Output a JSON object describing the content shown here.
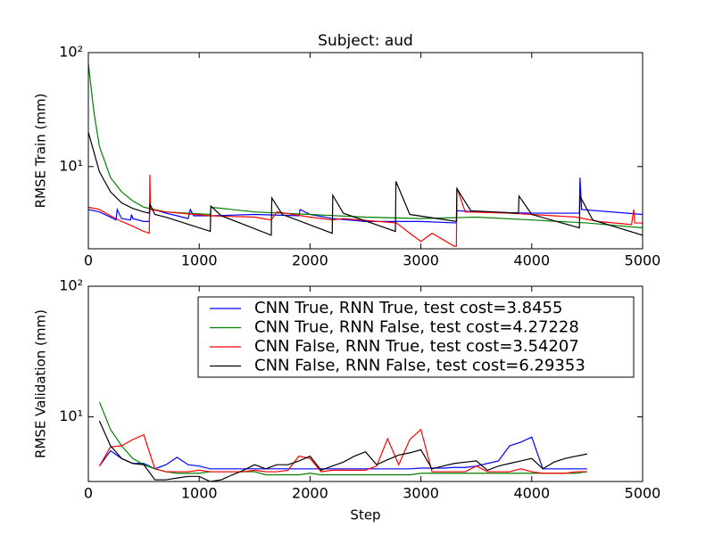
{
  "chart_data": [
    {
      "type": "line",
      "title": "Subject: aud",
      "y_label": "RMSE Train (mm)",
      "yscale": "log",
      "xlim": [
        0,
        5000
      ],
      "xticks": [
        0,
        1000,
        2000,
        3000,
        4000,
        5000
      ],
      "ylim": [
        1.9,
        100
      ],
      "yticks": [
        {
          "value": 10,
          "label": "10¹"
        },
        {
          "value": 100,
          "label": "10²"
        }
      ],
      "series": [
        {
          "color": "#0000ff",
          "x": [
            0,
            100,
            200,
            250,
            260,
            300,
            380,
            390,
            400,
            500,
            550,
            555,
            700,
            800,
            900,
            920,
            950,
            1100,
            1500,
            1900,
            1910,
            2000,
            2200,
            2500,
            3000,
            3320,
            3325,
            3500,
            4000,
            4430,
            4435,
            4450,
            5000
          ],
          "values": [
            4.2,
            4,
            3.6,
            3.4,
            4.2,
            3.5,
            3.4,
            3.8,
            3.5,
            3.3,
            3.3,
            4.3,
            3.9,
            3.7,
            3.5,
            4.2,
            3.7,
            3.7,
            3.8,
            3.7,
            4.2,
            3.8,
            3.5,
            3.3,
            3.3,
            3.2,
            4.1,
            4.0,
            3.9,
            3.9,
            8,
            4.2,
            3.8
          ]
        },
        {
          "color": "#008000",
          "x": [
            0,
            50,
            100,
            200,
            300,
            400,
            500,
            700,
            1100,
            1105,
            1500,
            2000,
            2500,
            3000,
            3500,
            4000,
            4500,
            5000
          ],
          "values": [
            80,
            30,
            15,
            8,
            6,
            5,
            4.4,
            4.0,
            3.8,
            4.4,
            4.0,
            3.8,
            3.6,
            3.5,
            3.6,
            3.4,
            3.2,
            2.9
          ]
        },
        {
          "color": "#ff0000",
          "x": [
            0,
            100,
            200,
            300,
            400,
            500,
            550,
            555,
            560,
            700,
            1100,
            1500,
            1650,
            1700,
            2000,
            2200,
            2300,
            2780,
            2900,
            3000,
            3100,
            3300,
            3320,
            3325,
            3400,
            3800,
            4200,
            4400,
            4600,
            4900,
            4920,
            4930,
            5000
          ],
          "values": [
            4.4,
            4.2,
            3.7,
            3.3,
            3.0,
            2.7,
            2.6,
            8.5,
            4.2,
            4.0,
            3.7,
            3.6,
            3.4,
            4.0,
            3.6,
            3.4,
            3.5,
            3.2,
            2.6,
            2.2,
            2.6,
            2.0,
            2.0,
            6.5,
            4.0,
            3.9,
            3.7,
            3.6,
            3.3,
            3.1,
            4.2,
            3.2,
            3.2
          ]
        },
        {
          "color": "#000000",
          "x": [
            0,
            100,
            200,
            300,
            400,
            500,
            550,
            555,
            600,
            700,
            1100,
            1105,
            1200,
            1650,
            1655,
            1750,
            2200,
            2205,
            2300,
            2770,
            2775,
            2900,
            3320,
            3325,
            3450,
            3880,
            3885,
            4000,
            4430,
            4435,
            4550,
            5000
          ],
          "values": [
            20,
            9,
            6,
            4.8,
            4.3,
            4,
            3.9,
            4.7,
            3.8,
            3.6,
            2.7,
            4.5,
            3.7,
            2.5,
            5.3,
            3.8,
            2.6,
            5.6,
            3.9,
            2.7,
            7.4,
            3.8,
            3.3,
            6.4,
            4.1,
            3.9,
            5.5,
            3.8,
            2.9,
            5.5,
            3.4,
            2.5
          ]
        }
      ]
    },
    {
      "type": "line",
      "x_label": "Step",
      "y_label": "RMSE Validation (mm)",
      "yscale": "log",
      "legend": "upper right",
      "xlim": [
        0,
        5000
      ],
      "xticks": [
        0,
        1000,
        2000,
        3000,
        4000,
        5000
      ],
      "ylim": [
        3.2,
        100
      ],
      "yticks": [
        {
          "value": 10,
          "label": "10¹"
        },
        {
          "value": 100,
          "label": "10²"
        }
      ],
      "x": [
        100,
        200,
        300,
        400,
        500,
        600,
        700,
        800,
        900,
        1000,
        1100,
        1200,
        1300,
        1400,
        1500,
        1600,
        1700,
        1800,
        1900,
        2000,
        2100,
        2200,
        2300,
        2400,
        2500,
        2600,
        2700,
        2800,
        2900,
        3000,
        3100,
        3200,
        3300,
        3400,
        3500,
        3600,
        3700,
        3800,
        3900,
        4000,
        4100,
        4200,
        4300,
        4400,
        4500
      ],
      "series": [
        {
          "name": "CNN True, RNN True, test cost=3.8455",
          "color": "#0000ff",
          "values": [
            4.2,
            5.5,
            4.8,
            4.4,
            4.4,
            4.0,
            4.3,
            4.9,
            4.3,
            4.2,
            4.0,
            4.0,
            4.0,
            4.0,
            4.0,
            4.0,
            4.0,
            4.0,
            4.0,
            4.0,
            4.0,
            4.0,
            4.0,
            4.0,
            4.0,
            4.0,
            4.0,
            4.0,
            4.0,
            4.05,
            4.05,
            4.05,
            4.1,
            4.1,
            4.2,
            4.4,
            4.6,
            6.0,
            6.4,
            7.0,
            4.0,
            4.0,
            4.0,
            4.0,
            4.0
          ]
        },
        {
          "name": "CNN True, RNN False, test cost=4.27228",
          "color": "#008000",
          "values": [
            13,
            8,
            6,
            4.8,
            4.3,
            4.0,
            3.8,
            3.7,
            3.7,
            3.7,
            3.8,
            3.8,
            3.8,
            3.8,
            3.8,
            3.6,
            3.6,
            3.6,
            3.6,
            3.7,
            3.6,
            3.6,
            3.6,
            3.6,
            3.6,
            3.6,
            3.6,
            3.6,
            3.6,
            3.7,
            3.7,
            3.7,
            3.7,
            3.7,
            3.7,
            3.7,
            3.7,
            3.7,
            3.7,
            3.7,
            3.7,
            3.7,
            3.7,
            3.7,
            3.8
          ]
        },
        {
          "name": "CNN False, RNN True, test cost=3.54207",
          "color": "#ff0000",
          "values": [
            4.2,
            5.9,
            6.0,
            6.7,
            7.3,
            4.0,
            3.8,
            3.8,
            3.8,
            3.9,
            3.8,
            3.8,
            3.8,
            3.8,
            3.9,
            3.8,
            3.8,
            3.9,
            5.0,
            4.8,
            3.8,
            3.9,
            3.9,
            3.9,
            3.9,
            4.2,
            6.8,
            4.3,
            6.7,
            8.0,
            3.8,
            3.8,
            3.8,
            3.8,
            4.2,
            3.8,
            3.8,
            3.8,
            4.0,
            3.8,
            3.7,
            3.7,
            3.7,
            3.8,
            3.8
          ]
        },
        {
          "name": "CNN False, RNN False, test cost=6.29353",
          "color": "#000000",
          "values": [
            9.3,
            6,
            4.8,
            4.4,
            4.3,
            3.3,
            3.3,
            3.4,
            3.5,
            3.5,
            3.2,
            3.3,
            3.6,
            3.9,
            4.3,
            4.0,
            4.3,
            4.3,
            4.6,
            5.0,
            3.9,
            4.2,
            4.5,
            5.0,
            5.4,
            4.3,
            4.7,
            5.1,
            5.3,
            5.6,
            4.0,
            4.2,
            4.4,
            4.5,
            4.6,
            3.9,
            4.2,
            4.4,
            4.6,
            4.8,
            4.0,
            4.5,
            4.8,
            5.0,
            5.2
          ]
        }
      ]
    }
  ]
}
